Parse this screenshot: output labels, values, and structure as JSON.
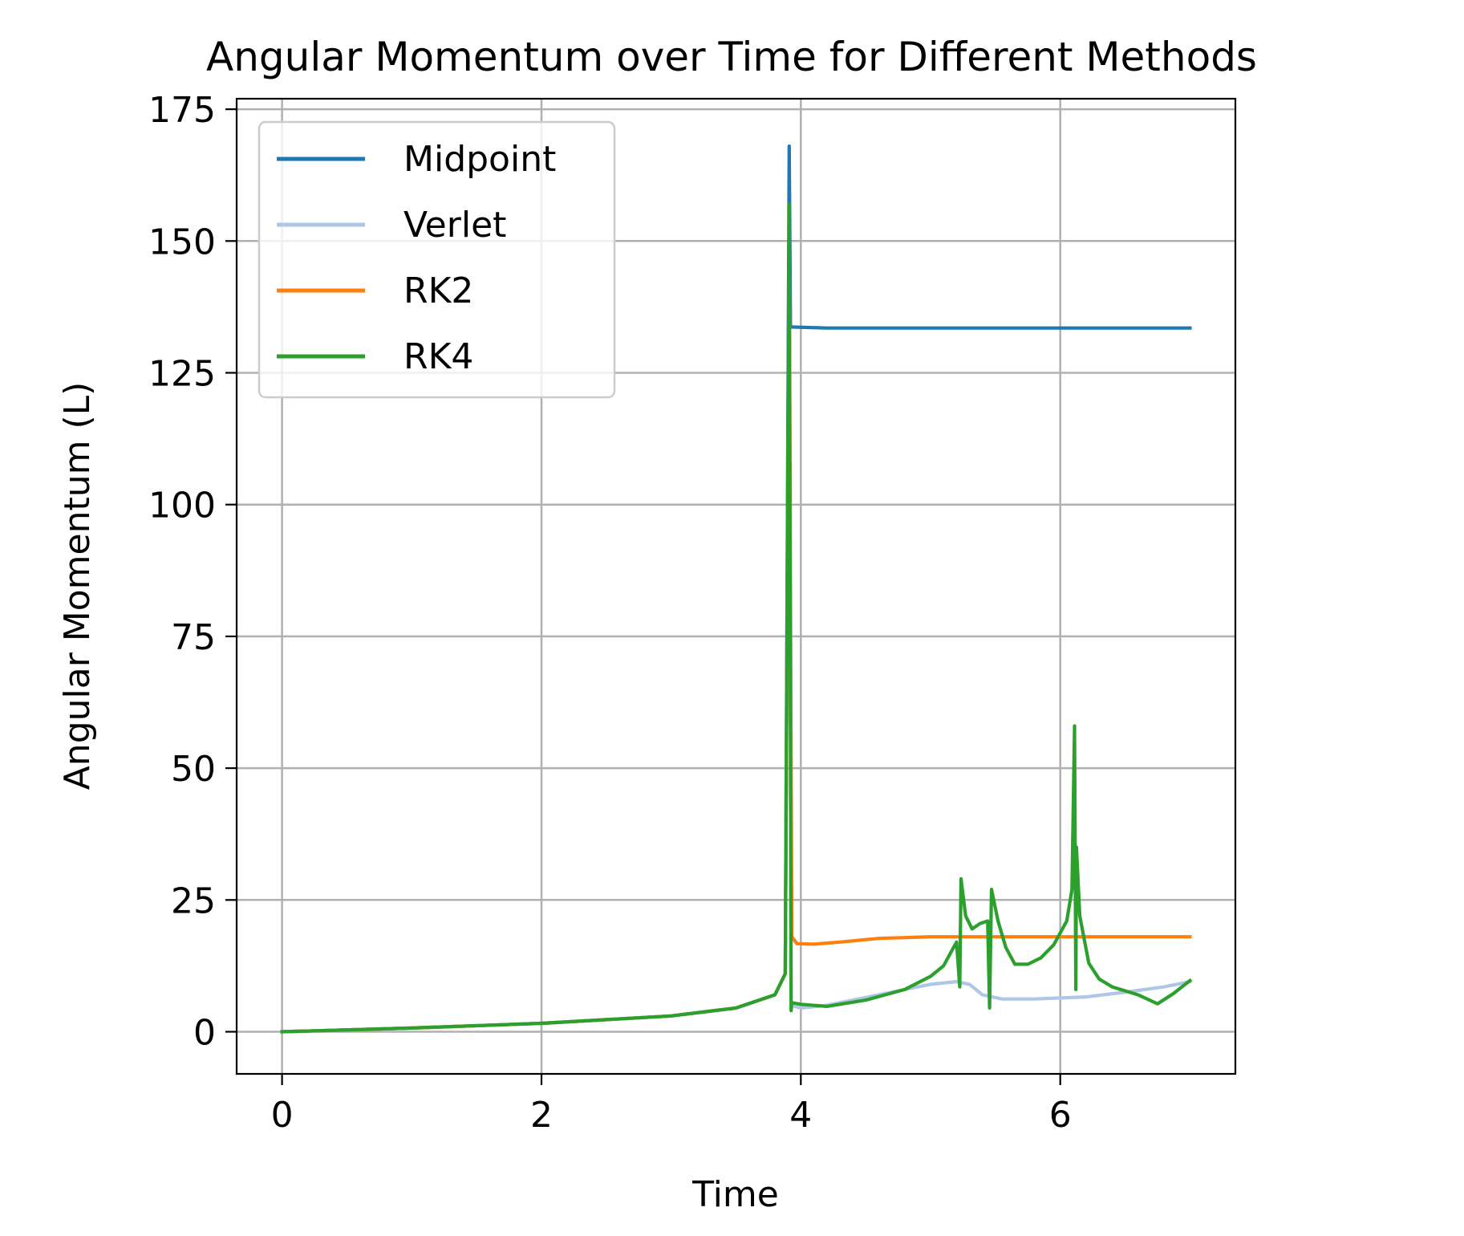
{
  "chart_data": {
    "type": "line",
    "title": "Angular Momentum over Time for Different Methods",
    "xlabel": "Time",
    "ylabel": "Angular Momentum (L)",
    "xlim": [
      -0.35,
      7.35
    ],
    "ylim": [
      -8,
      177
    ],
    "xticks": [
      0,
      2,
      4,
      6
    ],
    "yticks": [
      0,
      25,
      50,
      75,
      100,
      125,
      150,
      175
    ],
    "grid": true,
    "legend_position": "top-left",
    "series": [
      {
        "name": "Midpoint",
        "color": "#1f77b4",
        "points": [
          [
            0,
            0
          ],
          [
            1,
            0.7
          ],
          [
            2,
            1.6
          ],
          [
            3,
            3.0
          ],
          [
            3.5,
            4.5
          ],
          [
            3.8,
            7
          ],
          [
            3.88,
            11
          ],
          [
            3.91,
            168
          ],
          [
            3.92,
            133.7
          ],
          [
            4.2,
            133.5
          ],
          [
            7.0,
            133.5
          ]
        ]
      },
      {
        "name": "Verlet",
        "color": "#aec7e8",
        "points": [
          [
            0,
            0
          ],
          [
            1,
            0.7
          ],
          [
            2,
            1.6
          ],
          [
            3,
            3.0
          ],
          [
            3.5,
            4.5
          ],
          [
            3.8,
            7
          ],
          [
            3.88,
            11
          ],
          [
            3.91,
            150
          ],
          [
            3.925,
            5
          ],
          [
            4.0,
            4.5
          ],
          [
            4.2,
            5
          ],
          [
            4.5,
            6.5
          ],
          [
            4.8,
            8
          ],
          [
            5.0,
            9.0
          ],
          [
            5.2,
            9.5
          ],
          [
            5.3,
            9.0
          ],
          [
            5.4,
            7
          ],
          [
            5.55,
            6.2
          ],
          [
            5.8,
            6.2
          ],
          [
            6.2,
            6.6
          ],
          [
            6.5,
            7.5
          ],
          [
            6.8,
            8.5
          ],
          [
            7.0,
            9.5
          ]
        ]
      },
      {
        "name": "RK2",
        "color": "#ff7f0e",
        "points": [
          [
            0,
            0
          ],
          [
            1,
            0.7
          ],
          [
            2,
            1.6
          ],
          [
            3,
            3.0
          ],
          [
            3.5,
            4.5
          ],
          [
            3.8,
            7
          ],
          [
            3.88,
            11
          ],
          [
            3.91,
            150
          ],
          [
            3.93,
            18
          ],
          [
            3.97,
            16.7
          ],
          [
            4.1,
            16.6
          ],
          [
            4.3,
            17.0
          ],
          [
            4.6,
            17.7
          ],
          [
            5.0,
            18.0
          ],
          [
            7.0,
            18.0
          ]
        ]
      },
      {
        "name": "RK4",
        "color": "#2ca02c",
        "points": [
          [
            0,
            0
          ],
          [
            1,
            0.7
          ],
          [
            2,
            1.6
          ],
          [
            3,
            3.0
          ],
          [
            3.5,
            4.5
          ],
          [
            3.8,
            7
          ],
          [
            3.88,
            11
          ],
          [
            3.91,
            157
          ],
          [
            3.925,
            4
          ],
          [
            3.93,
            5.5
          ],
          [
            4.0,
            5.2
          ],
          [
            4.2,
            4.8
          ],
          [
            4.5,
            6
          ],
          [
            4.8,
            8
          ],
          [
            5.0,
            10.5
          ],
          [
            5.1,
            12.5
          ],
          [
            5.2,
            17
          ],
          [
            5.225,
            8.5
          ],
          [
            5.235,
            29
          ],
          [
            5.27,
            22
          ],
          [
            5.32,
            19.5
          ],
          [
            5.38,
            20.5
          ],
          [
            5.44,
            21
          ],
          [
            5.455,
            4.5
          ],
          [
            5.47,
            27
          ],
          [
            5.52,
            21
          ],
          [
            5.58,
            16
          ],
          [
            5.65,
            12.8
          ],
          [
            5.75,
            12.8
          ],
          [
            5.85,
            14
          ],
          [
            5.95,
            16.5
          ],
          [
            6.05,
            21
          ],
          [
            6.09,
            27
          ],
          [
            6.11,
            58
          ],
          [
            6.12,
            8
          ],
          [
            6.125,
            35
          ],
          [
            6.15,
            22
          ],
          [
            6.22,
            13
          ],
          [
            6.3,
            10
          ],
          [
            6.4,
            8.5
          ],
          [
            6.6,
            7
          ],
          [
            6.75,
            5.3
          ],
          [
            6.87,
            7.2
          ],
          [
            7.0,
            9.7
          ]
        ]
      }
    ]
  }
}
